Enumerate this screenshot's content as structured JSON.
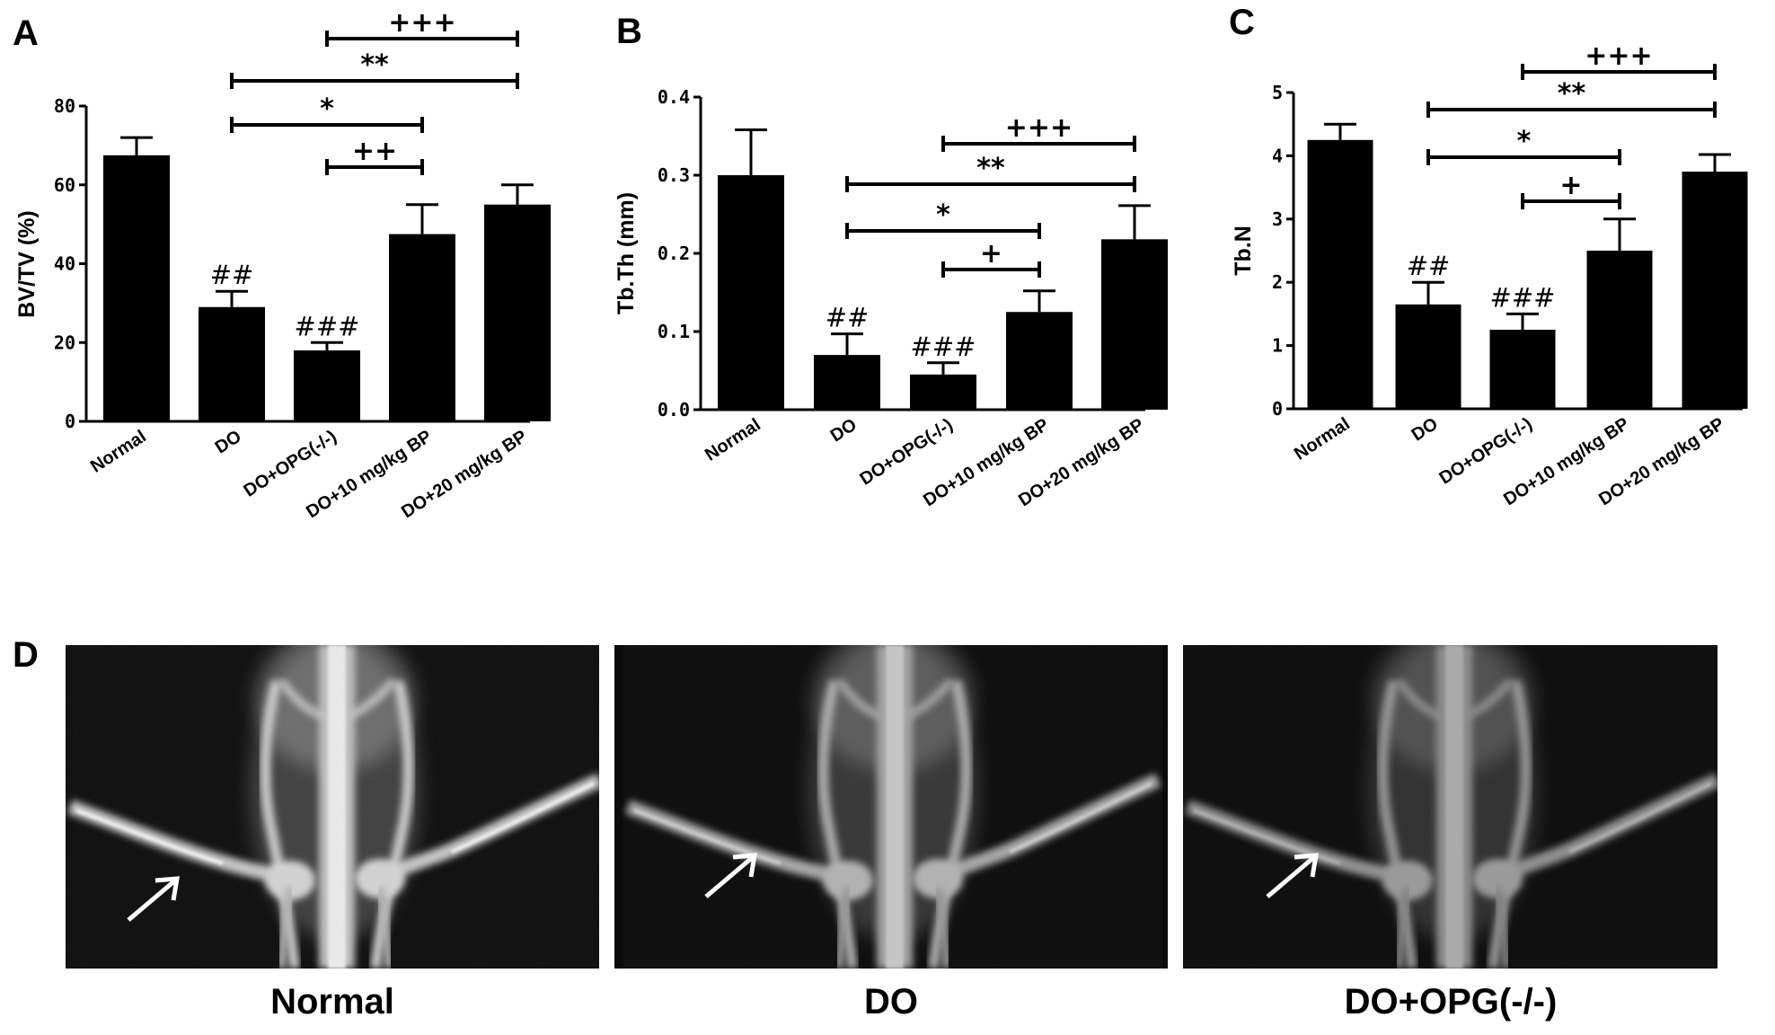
{
  "chart_data": [
    {
      "type": "bar",
      "panel": "A",
      "categories": [
        "Normal",
        "DO",
        "DO+OPG(-/-)",
        "DO+10 mg/kg BP",
        "DO+20 mg/kg BP"
      ],
      "values": [
        67.5,
        29,
        18,
        47.5,
        55
      ],
      "errors": [
        4.5,
        4,
        2,
        7.5,
        5
      ],
      "ylabel": "BV/TV (%)",
      "ylim": [
        0,
        80
      ],
      "yticks": [
        "0",
        "20",
        "40",
        "60",
        "80"
      ],
      "bar_labels": [
        "",
        "##",
        "###",
        "",
        ""
      ],
      "comparisons": [
        {
          "from": 3,
          "to": 5,
          "label": "+++"
        },
        {
          "from": 2,
          "to": 5,
          "label": "**"
        },
        {
          "from": 2,
          "to": 4,
          "label": "*"
        },
        {
          "from": 3,
          "to": 4,
          "label": "++"
        }
      ]
    },
    {
      "type": "bar",
      "panel": "B",
      "categories": [
        "Normal",
        "DO",
        "DO+OPG(-/-)",
        "DO+10 mg/kg BP",
        "DO+20 mg/kg BP"
      ],
      "values": [
        0.3,
        0.07,
        0.045,
        0.125,
        0.218
      ],
      "errors": [
        0.058,
        0.027,
        0.015,
        0.027,
        0.043
      ],
      "ylabel": "Tb.Th (mm)",
      "ylim": [
        0,
        0.4
      ],
      "yticks": [
        "0.0",
        "0.1",
        "0.2",
        "0.3",
        "0.4"
      ],
      "bar_labels": [
        "",
        "##",
        "###",
        "",
        ""
      ],
      "comparisons": [
        {
          "from": 3,
          "to": 5,
          "label": "+++"
        },
        {
          "from": 2,
          "to": 5,
          "label": "**"
        },
        {
          "from": 2,
          "to": 4,
          "label": "*"
        },
        {
          "from": 3,
          "to": 4,
          "label": "+"
        }
      ]
    },
    {
      "type": "bar",
      "panel": "C",
      "categories": [
        "Normal",
        "DO",
        "DO+OPG(-/-)",
        "DO+10 mg/kg BP",
        "DO+20 mg/kg BP"
      ],
      "values": [
        4.25,
        1.65,
        1.25,
        2.5,
        3.75
      ],
      "errors": [
        0.25,
        0.35,
        0.25,
        0.5,
        0.27
      ],
      "ylabel": "Tb.N",
      "ylim": [
        0,
        5
      ],
      "yticks": [
        "0",
        "1",
        "2",
        "3",
        "4",
        "5"
      ],
      "bar_labels": [
        "",
        "##",
        "###",
        "",
        ""
      ],
      "comparisons": [
        {
          "from": 3,
          "to": 5,
          "label": "+++"
        },
        {
          "from": 2,
          "to": 5,
          "label": "**"
        },
        {
          "from": 2,
          "to": 4,
          "label": "*"
        },
        {
          "from": 3,
          "to": 4,
          "label": "+"
        }
      ]
    }
  ],
  "images": {
    "panel": "D",
    "captions": [
      "Normal",
      "DO",
      "DO+OPG(-/-)"
    ],
    "arrow_icon": "white-arrow-icon"
  }
}
